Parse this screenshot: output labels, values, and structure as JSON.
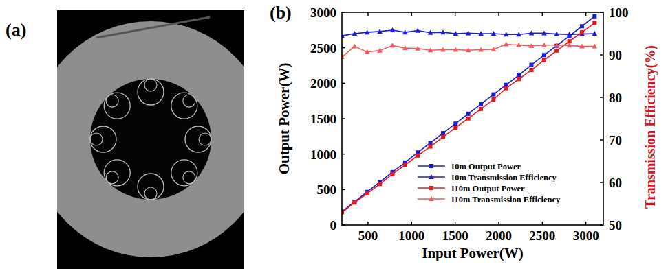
{
  "panel_labels": [
    "(a)",
    "(b)"
  ],
  "chart_data": {
    "type": "line",
    "x_label": "Input Power(W)",
    "y_label": "Output Power(W)",
    "y2_label": "Transmission Efficiency(%)",
    "x": [
      200,
      345,
      490,
      635,
      780,
      925,
      1070,
      1215,
      1360,
      1505,
      1650,
      1795,
      1940,
      2085,
      2230,
      2375,
      2520,
      2665,
      2810,
      2955,
      3100
    ],
    "xlim": [
      200,
      3200
    ],
    "xticks": [
      500,
      1000,
      1500,
      2000,
      2500,
      3000
    ],
    "ylim": [
      0,
      3000
    ],
    "yticks": [
      0,
      500,
      1000,
      1500,
      2000,
      2500,
      3000
    ],
    "y2lim": [
      50,
      100
    ],
    "y2ticks": [
      50,
      60,
      70,
      80,
      90,
      100
    ],
    "grid": false,
    "legend": "lower right",
    "series": [
      {
        "name": "10m Output Power",
        "color": "#1c1cd8",
        "marker": "square",
        "line_style": "solid",
        "values": [
          189,
          328,
          467,
          606,
          747,
          882,
          1024,
          1157,
          1296,
          1430,
          1569,
          1705,
          1843,
          1977,
          2114,
          2259,
          2397,
          2529,
          2664,
          2804,
          2945
        ]
      },
      {
        "name": "10m Transmission Efficiency",
        "color": "#1c1cd8",
        "marker": "triangle",
        "line_style": "solid",
        "axis": "y2",
        "values": [
          94.5,
          95,
          95.3,
          95.5,
          95.8,
          95.3,
          95.7,
          95.2,
          95.3,
          95,
          95.1,
          95,
          95,
          94.8,
          94.8,
          95.1,
          95.1,
          94.9,
          94.8,
          94.9,
          95
        ]
      },
      {
        "name": "110m Output Power",
        "color": "#e8191b",
        "marker": "square",
        "line_style": "solid",
        "values": [
          179,
          317,
          444,
          578,
          719,
          847,
          979,
          1107,
          1240,
          1373,
          1503,
          1637,
          1771,
          1929,
          2058,
          2187,
          2326,
          2460,
          2591,
          2719,
          2852
        ]
      },
      {
        "name": "110m Transmission Efficiency",
        "color": "#f05a5e",
        "marker": "triangle",
        "line_style": "solid",
        "axis": "y2",
        "values": [
          89.5,
          92,
          90.7,
          91,
          92.2,
          91.6,
          91.5,
          91.1,
          91.2,
          91.2,
          91.1,
          91.2,
          91.3,
          92.5,
          92.3,
          92.1,
          92.3,
          92.3,
          92.2,
          92,
          92
        ]
      }
    ]
  }
}
